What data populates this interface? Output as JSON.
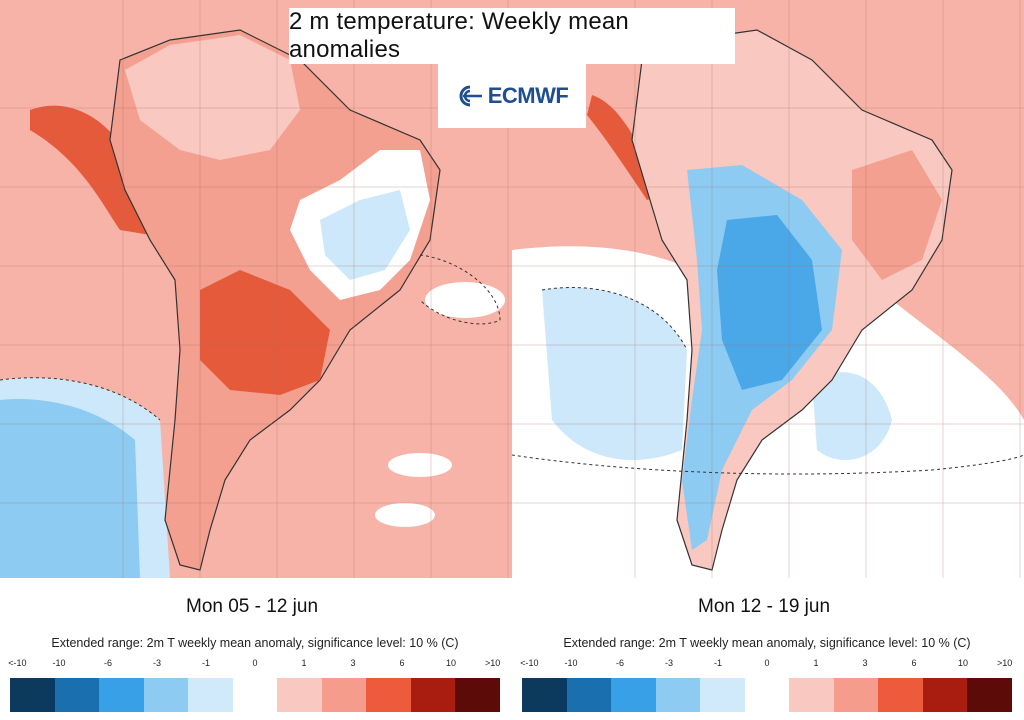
{
  "header": {
    "title": "2 m temperature: Weekly mean anomalies",
    "logo_text": "ECMWF"
  },
  "maps": [
    {
      "period_label": "Mon 05 - 12 jun",
      "dominant_anomaly": "warm",
      "legend_caption": "Extended range: 2m T weekly mean anomaly, significance level: 10 % (C)"
    },
    {
      "period_label": "Mon 12 - 19 jun",
      "dominant_anomaly": "cold",
      "legend_caption": "Extended range: 2m T weekly mean anomaly, significance level: 10 % (C)"
    }
  ],
  "legend": {
    "ticks": [
      "<-10",
      "-10",
      "-6",
      "-3",
      "-1",
      "0",
      "1",
      "3",
      "6",
      "10",
      ">10"
    ],
    "colors": [
      "#0b3a5e",
      "#1a6fae",
      "#37a0e6",
      "#8ecbf2",
      "#d0eafb",
      "#ffffff",
      "#f9c8c1",
      "#f59c8d",
      "#ee5a3c",
      "#a81d10",
      "#5c0b09"
    ]
  },
  "palette": {
    "ocean_warm": "#f8b3a8",
    "land_warm": "#f4a090",
    "strong_warm": "#e65a3c",
    "neutral": "#ffffff",
    "weak_cold": "#cce8fa",
    "cold": "#8ecbf2",
    "strong_cold": "#4aa8e8",
    "coastline": "#333333"
  }
}
